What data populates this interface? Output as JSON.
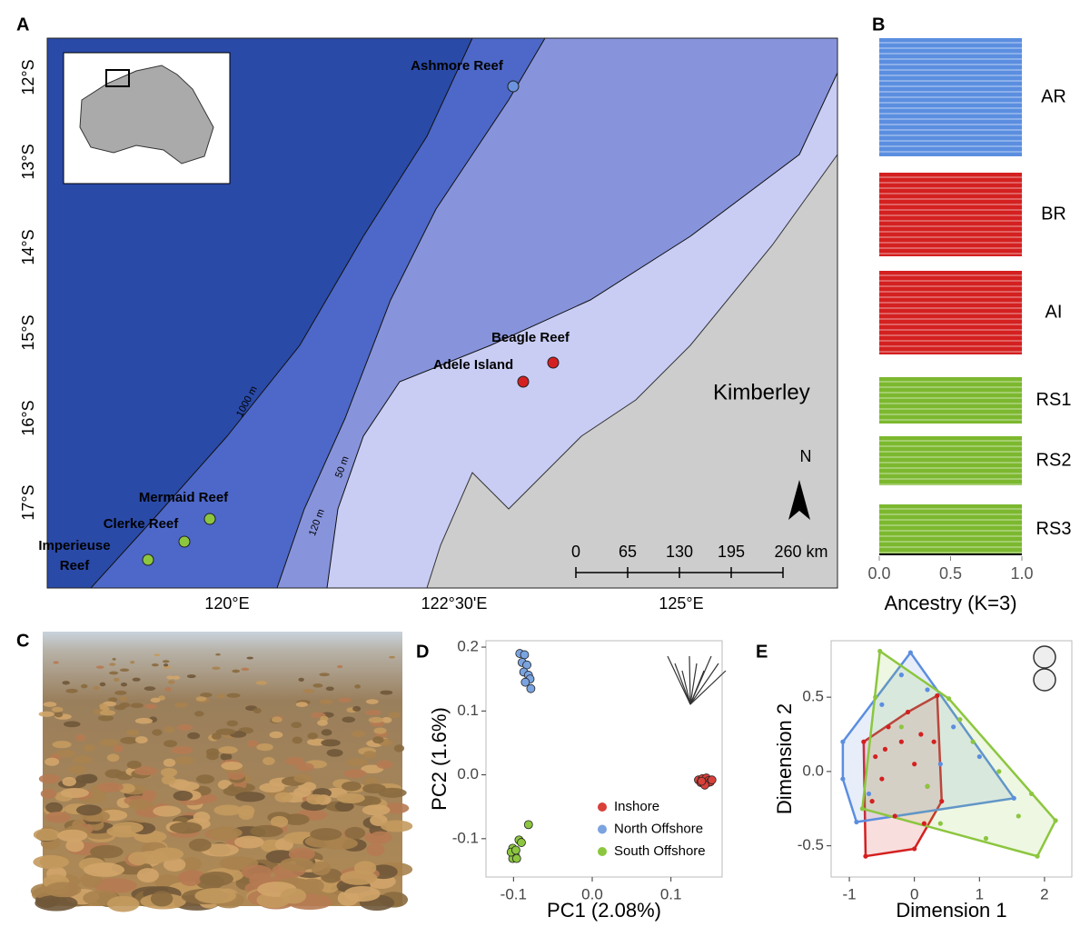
{
  "panel_labels": [
    "A",
    "B",
    "C",
    "D",
    "E"
  ],
  "map": {
    "lat_ticks": [
      "12°S",
      "13°S",
      "14°S",
      "15°S",
      "16°S",
      "17°S"
    ],
    "lon_ticks": [
      "120°E",
      "122°30'E",
      "125°E"
    ],
    "depth_labels": [
      "1000 m",
      "120 m",
      "50 m"
    ],
    "region": "Kimberley",
    "north": "N",
    "scale_labels": [
      "0",
      "65",
      "130",
      "195",
      "260 km"
    ],
    "sites": [
      {
        "label": [
          "Ashmore Reef"
        ],
        "color": "#6b93de"
      },
      {
        "label": [
          "Beagle Reef"
        ],
        "color": "#d42020"
      },
      {
        "label": [
          "Adele Island"
        ],
        "color": "#d42020"
      },
      {
        "label": [
          "Mermaid Reef"
        ],
        "color": "#8cc63f"
      },
      {
        "label": [
          "Clerke Reef"
        ],
        "color": "#8cc63f"
      },
      {
        "label": [
          "Imperieuse",
          "Reef"
        ],
        "color": "#8cc63f"
      }
    ]
  },
  "chart_data": [
    {
      "type": "bar",
      "orientation": "horizontal",
      "stacked": true,
      "categories": [
        "AR",
        "BR",
        "AI",
        "RS1",
        "RS2",
        "RS3"
      ],
      "series": [
        {
          "color": "#5b8ee0",
          "values": [
            1,
            0,
            0,
            0,
            0,
            0
          ]
        },
        {
          "color": "#d42020",
          "values": [
            0,
            1,
            1,
            0,
            0,
            0
          ]
        },
        {
          "color": "#7cb82f",
          "values": [
            0,
            0,
            0,
            1,
            1,
            1
          ]
        }
      ],
      "xlabel": "Ancestry (K=3)",
      "xlim": [
        0,
        1
      ],
      "xticks": [
        {
          "value": 0,
          "label": "0.0"
        },
        0.5,
        {
          "value": 1,
          "label": "1.0"
        }
      ]
    },
    {
      "type": "scatter",
      "xlabel": "PC1 (2.08%)",
      "ylabel": "PC2 (1.6%)",
      "xlim": [
        -0.135,
        0.165
      ],
      "ylim": [
        -0.16,
        0.21
      ],
      "xticks": [
        -0.1,
        {
          "value": 0,
          "label": "0.0"
        },
        0.1
      ],
      "yticks": [
        -0.1,
        {
          "value": 0,
          "label": "0.0"
        },
        0.1,
        0.2
      ],
      "legend": "lower right",
      "series": [
        {
          "name": "Inshore",
          "color": "#d9403a",
          "x": [
            0.135,
            0.138,
            0.14,
            0.142,
            0.144,
            0.145,
            0.147,
            0.148,
            0.15,
            0.152,
            0.143,
            0.139
          ],
          "values": [
            -0.008,
            -0.012,
            -0.006,
            -0.014,
            -0.01,
            -0.005,
            -0.012,
            -0.009,
            -0.011,
            -0.008,
            -0.016,
            -0.01
          ]
        },
        {
          "name": "North Offshore",
          "color": "#7aa3e0",
          "x": [
            -0.092,
            -0.086,
            -0.089,
            -0.083,
            -0.087,
            -0.081,
            -0.079,
            -0.085,
            -0.078
          ],
          "values": [
            0.19,
            0.188,
            0.176,
            0.172,
            0.161,
            0.156,
            0.15,
            0.145,
            0.135
          ]
        },
        {
          "name": "South Offshore",
          "color": "#8cc63f",
          "x": [
            -0.101,
            -0.099,
            -0.098,
            -0.101,
            -0.096,
            -0.093,
            -0.09,
            -0.081,
            -0.103,
            -0.097
          ],
          "values": [
            -0.115,
            -0.121,
            -0.126,
            -0.131,
            -0.131,
            -0.102,
            -0.106,
            -0.078,
            -0.121,
            -0.118
          ]
        }
      ]
    },
    {
      "type": "scatter",
      "hulls": true,
      "xlabel": "Dimension 1",
      "ylabel": "Dimension 2",
      "xlim": [
        -1.28,
        2.42
      ],
      "ylim": [
        -0.71,
        0.88
      ],
      "xticks": [
        -1,
        0,
        1,
        2
      ],
      "yticks": [
        -0.5,
        {
          "value": 0,
          "label": "0.0"
        },
        0.5
      ],
      "series": [
        {
          "color": "#d42020",
          "x": [
            0.35,
            0.42,
            0.0,
            -0.75,
            -0.78,
            -0.6,
            -0.4,
            -0.2,
            0.1,
            0.2,
            -0.5,
            -0.3,
            0.0,
            -0.1,
            0.3,
            -0.65,
            -0.45,
            0.15
          ],
          "values": [
            0.51,
            -0.2,
            -0.52,
            -0.57,
            0.2,
            0.1,
            0.3,
            0.2,
            0.25,
            -0.1,
            -0.05,
            -0.3,
            0.05,
            0.4,
            0.2,
            -0.2,
            0.15,
            -0.35
          ]
        },
        {
          "color": "#5b8ee0",
          "x": [
            -0.06,
            -1.1,
            -1.1,
            -0.89,
            1.53,
            -0.5,
            0.2,
            0.6,
            1.0,
            -0.7,
            0.4,
            -0.2
          ],
          "values": [
            0.8,
            0.2,
            -0.05,
            -0.34,
            -0.18,
            0.45,
            0.55,
            0.3,
            0.1,
            -0.15,
            0.05,
            0.65
          ]
        },
        {
          "color": "#8cc63f",
          "x": [
            -0.53,
            0.53,
            2.17,
            1.89,
            -0.8,
            0.9,
            1.3,
            1.6,
            0.2,
            -0.2,
            1.1,
            0.7,
            1.8,
            -0.6,
            0.4
          ],
          "values": [
            0.81,
            0.49,
            -0.33,
            -0.57,
            -0.25,
            0.2,
            0.0,
            -0.3,
            -0.1,
            0.3,
            -0.45,
            0.35,
            -0.15,
            0.5,
            -0.35
          ]
        }
      ]
    }
  ]
}
